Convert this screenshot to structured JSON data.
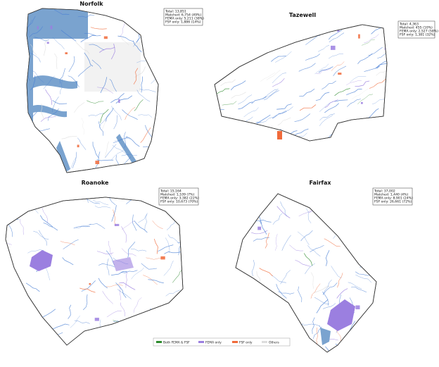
{
  "panels": [
    {
      "title": "Norfolk",
      "stats": [
        "Total: 13,851",
        "Matched: 6,754 (49%)",
        "FEMA only: 5,211 (38%)",
        "FSF only: 1,886 (14%)"
      ]
    },
    {
      "title": "Tazewell",
      "stats": [
        "Total: 4,363",
        "Matched: 455 (10%)",
        "FEMA only: 2,527 (58%)",
        "FSF only: 1,381 (32%)"
      ]
    },
    {
      "title": "Roanoke",
      "stats": [
        "Total: 15,164",
        "Matched: 1,109 (7%)",
        "FEMA only: 3,382 (22%)",
        "FSF only: 10,673 (70%)"
      ]
    },
    {
      "title": "Fairfax",
      "stats": [
        "Total: 37,002",
        "Matched: 1,440 (4%)",
        "FEMA only: 8,901 (24%)",
        "FSF only: 26,661 (72%)"
      ]
    }
  ],
  "legend": [
    {
      "label": "Both FEMA & FSF",
      "color": "#2e8b2e"
    },
    {
      "label": "FEMA only",
      "color": "#9b7fe0"
    },
    {
      "label": "FSF only",
      "color": "#f06a3a"
    },
    {
      "label": "Others",
      "color": "#dddddd"
    }
  ]
}
